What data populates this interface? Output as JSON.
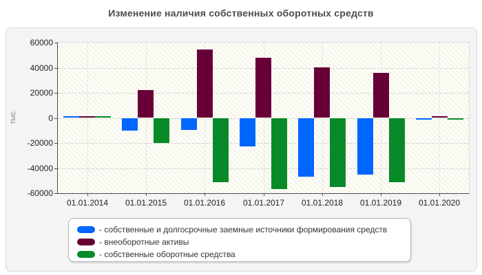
{
  "title": "Изменение наличия собственных оборотных средств",
  "chart_data": {
    "type": "bar",
    "title": "Изменение наличия собственных оборотных средств",
    "xlabel": "",
    "ylabel": "тыс.",
    "ylim": [
      -60000,
      60000
    ],
    "ytick_labels": [
      "60000",
      "40000",
      "20000",
      "0",
      "-20000",
      "-40000",
      "-60000"
    ],
    "grid": true,
    "legend_position": "bottom-box",
    "categories": [
      "01.01.2014",
      "01.01.2015",
      "01.01.2016",
      "01.01.2017",
      "01.01.2018",
      "01.01.2019",
      "01.01.2020"
    ],
    "series": [
      {
        "name": "собственные и долгосрочные заемные источники формирования средств",
        "color": "#0066ff",
        "values": [
          1500,
          -10000,
          -9500,
          -22500,
          -47000,
          -45000,
          -1000
        ]
      },
      {
        "name": "внеоборотные активы",
        "color": "#670037",
        "values": [
          1500,
          22000,
          54500,
          48000,
          40500,
          36000,
          1500
        ]
      },
      {
        "name": "собственные оборотные средства",
        "color": "#088a28",
        "values": [
          1500,
          -20000,
          -51000,
          -56500,
          -55000,
          -51500,
          -1000
        ]
      }
    ]
  },
  "legend": {
    "items": [
      {
        "label": "- собственные и долгосрочные заемные источники формирования средств",
        "color": "#0066ff"
      },
      {
        "label": "- внеоборотные активы",
        "color": "#670037"
      },
      {
        "label": "- собственные оборотные средства",
        "color": "#088a28"
      }
    ]
  }
}
